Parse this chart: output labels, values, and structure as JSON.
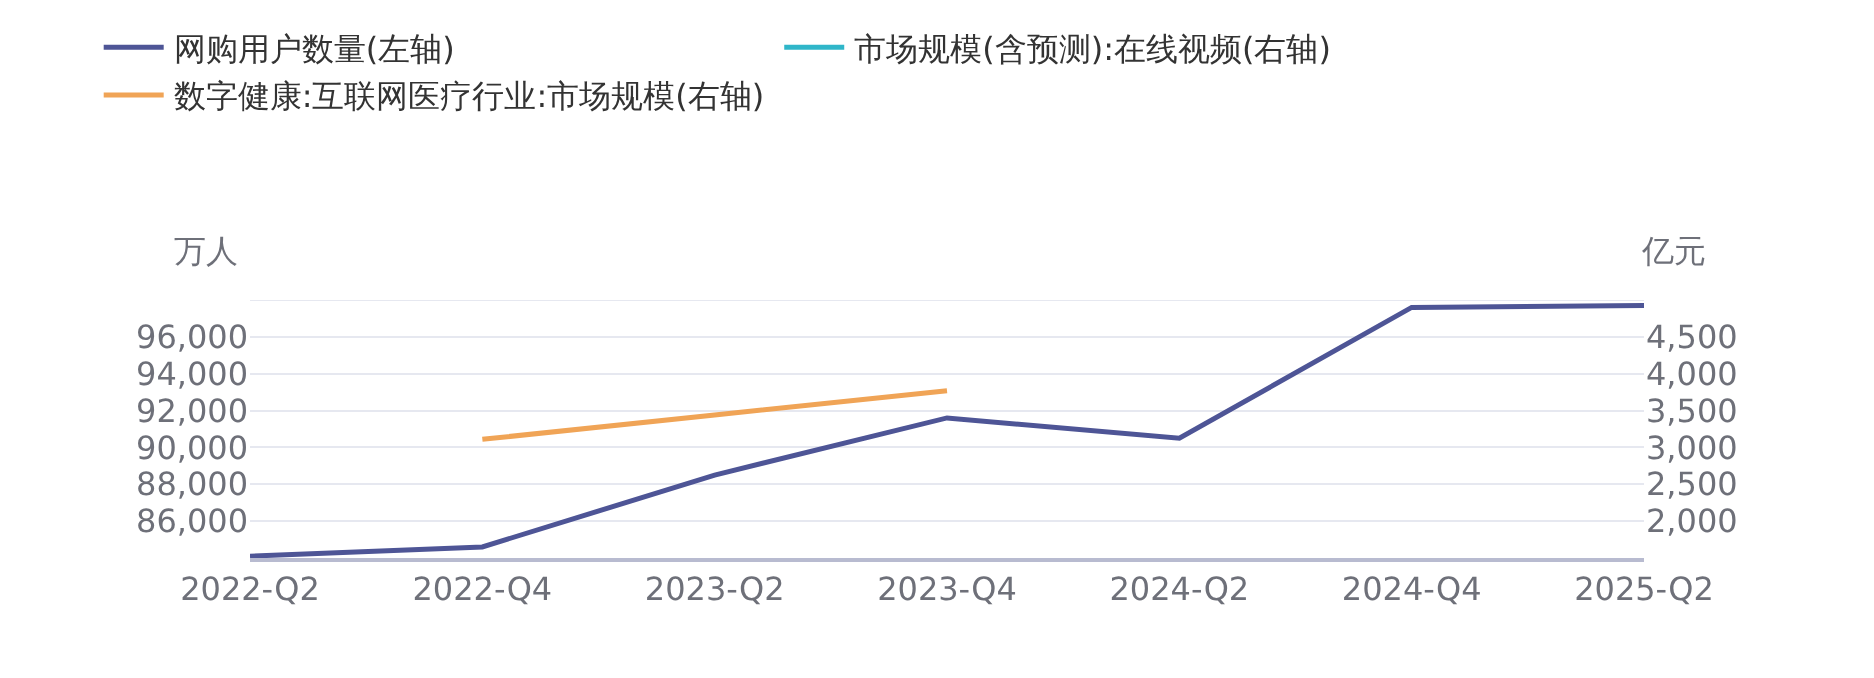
{
  "chart_data": {
    "type": "line",
    "ylabel": "万人",
    "y2label": "亿元",
    "categories": [
      "2022-Q2",
      "2022-Q4",
      "2023-Q2",
      "2023-Q4",
      "2024-Q2",
      "2024-Q4",
      "2025-Q2"
    ],
    "series": [
      {
        "name": "网购用户数量(左轴)",
        "color": "#4e5596",
        "values": [
          84100,
          84600,
          88500,
          91600,
          90500,
          97600,
          97700
        ]
      },
      {
        "name": "市场规模(含预测):在线视频(右轴)",
        "color": "#2fb6c9",
        "axis": "y2",
        "values": [
          null,
          null,
          null,
          null,
          null,
          null,
          null
        ]
      },
      {
        "name": "数字健康:互联网医疗行业:市场规模(右轴)",
        "color": "#f0a456",
        "axis": "y2",
        "values": [
          null,
          3110,
          3440,
          3770,
          null,
          null,
          null
        ]
      }
    ],
    "ylim": [
      84000,
      98000
    ],
    "yticks": [
      {
        "value": 86000,
        "label": "86,000"
      },
      {
        "value": 88000,
        "label": "88,000"
      },
      {
        "value": 90000,
        "label": "90,000"
      },
      {
        "value": 92000,
        "label": "92,000"
      },
      {
        "value": 94000,
        "label": "94,000"
      },
      {
        "value": 96000,
        "label": "96,000"
      },
      {
        "value": 98000,
        "label": null
      }
    ],
    "y2lim": [
      1500,
      5000
    ],
    "y2ticks": [
      {
        "value": 2000,
        "label": "2,000"
      },
      {
        "value": 2500,
        "label": "2,500"
      },
      {
        "value": 3000,
        "label": "3,000"
      },
      {
        "value": 3500,
        "label": "3,500"
      },
      {
        "value": 4000,
        "label": "4,000"
      },
      {
        "value": 4500,
        "label": "4,500"
      },
      {
        "value": 5000,
        "label": null
      }
    ],
    "grid": "y",
    "legend": "top left",
    "marker": "none",
    "line_style": "solid"
  }
}
